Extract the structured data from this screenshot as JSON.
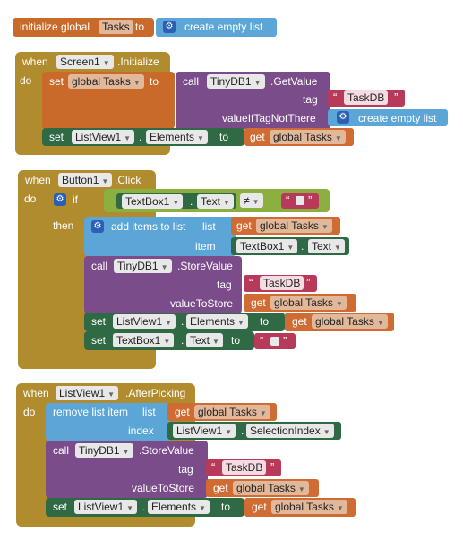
{
  "blocks": {
    "init": {
      "initialize": "initialize global",
      "name": "Tasks",
      "to": "to",
      "create": "create empty list"
    },
    "screen": {
      "when": "when",
      "do": "do",
      "component": "Screen1",
      "event": ".Initialize",
      "set": "set",
      "var": "global Tasks",
      "to": "to",
      "call": "call",
      "db": "TinyDB1",
      "method": ".GetValue",
      "tag": "tag",
      "tag_value": "TaskDB",
      "valueIfTagNotThere": "valueIfTagNotThere",
      "create": "create empty list",
      "set2": "set",
      "list_comp": "ListView1",
      "elements": "Elements",
      "to2": "to",
      "get": "get",
      "get_var": "global Tasks"
    },
    "button": {
      "when": "when",
      "do": "do",
      "component": "Button1",
      "event": ".Click",
      "if": "if",
      "then": "then",
      "tb": "TextBox1",
      "text": "Text",
      "neq": "≠",
      "add": "add items to list",
      "list": "list",
      "get": "get",
      "get_var": "global Tasks",
      "item": "item",
      "tb2": "TextBox1",
      "text2": "Text",
      "call": "call",
      "db": "TinyDB1",
      "method": ".StoreValue",
      "tag": "tag",
      "tag_value": "TaskDB",
      "valueToStore": "valueToStore",
      "get2": "get",
      "get_var2": "global Tasks",
      "set1": "set",
      "lv": "ListView1",
      "elements": "Elements",
      "to1": "to",
      "get3": "get",
      "get_var3": "global Tasks",
      "set2": "set",
      "tb3": "TextBox1",
      "text3": "Text",
      "to2": "to"
    },
    "picking": {
      "when": "when",
      "do": "do",
      "component": "ListView1",
      "event": ".AfterPicking",
      "remove": "remove list item",
      "list": "list",
      "get": "get",
      "get_var": "global Tasks",
      "index": "index",
      "lv": "ListView1",
      "sel": "SelectionIndex",
      "call": "call",
      "db": "TinyDB1",
      "method": ".StoreValue",
      "tag": "tag",
      "tag_value": "TaskDB",
      "valueToStore": "valueToStore",
      "get2": "get",
      "get_var2": "global Tasks",
      "set": "set",
      "lv2": "ListView1",
      "elements": "Elements",
      "to": "to",
      "get3": "get",
      "get_var3": "global Tasks"
    }
  }
}
